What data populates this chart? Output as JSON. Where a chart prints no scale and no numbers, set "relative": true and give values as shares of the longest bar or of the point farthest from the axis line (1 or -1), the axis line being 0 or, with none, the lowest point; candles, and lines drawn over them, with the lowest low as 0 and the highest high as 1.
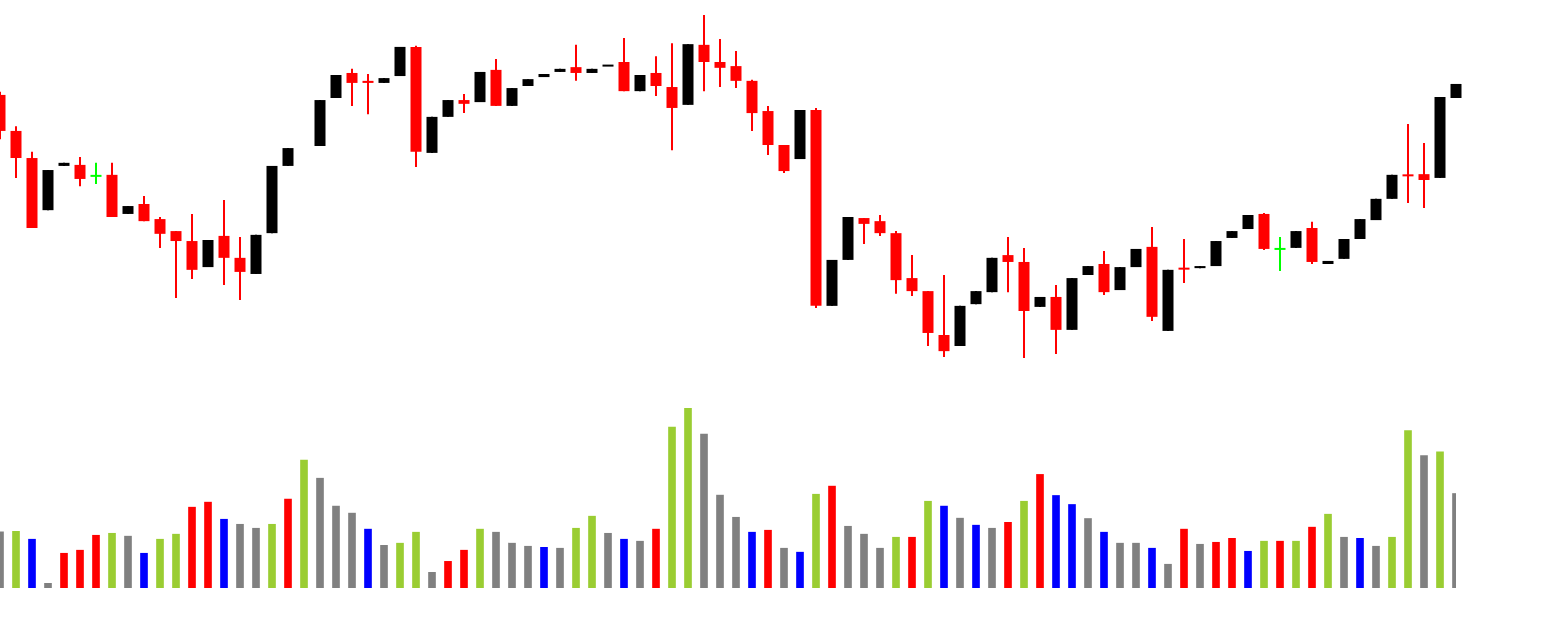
{
  "chart_data": [
    {
      "type": "candlestick",
      "relative": true,
      "categories": [
        null,
        null,
        null,
        null,
        null,
        null,
        null,
        null,
        null,
        null,
        null,
        null,
        null,
        null,
        null,
        null,
        null,
        null,
        null,
        null,
        null,
        null,
        null,
        null,
        null,
        null,
        null,
        null,
        null,
        null,
        null,
        null,
        null,
        null,
        null,
        null,
        null,
        null,
        null,
        null,
        null,
        null,
        null,
        null,
        null,
        null,
        null,
        null,
        null,
        null,
        null,
        null,
        null,
        null,
        null,
        null,
        null,
        null,
        null,
        null,
        null,
        null,
        null,
        null,
        null,
        null,
        null,
        null,
        null,
        null,
        null,
        null,
        null,
        null,
        null,
        null,
        null,
        null,
        null,
        null,
        null,
        null,
        null,
        null,
        null,
        null,
        null,
        null,
        null,
        null,
        null,
        null
      ],
      "ohlc": [
        [
          0.767,
          0.776,
          0.638,
          0.662
        ],
        [
          0.662,
          0.676,
          0.525,
          0.583
        ],
        [
          0.583,
          0.601,
          0.379,
          0.379
        ],
        [
          0.431,
          0.548,
          0.431,
          0.548
        ],
        [
          0.56,
          0.569,
          0.56,
          0.569
        ],
        [
          0.563,
          0.586,
          0.501,
          0.522
        ],
        [
          0.531,
          0.569,
          0.507,
          0.531
        ],
        [
          0.534,
          0.569,
          0.411,
          0.411
        ],
        [
          0.42,
          0.443,
          0.42,
          0.443
        ],
        [
          0.449,
          0.472,
          0.399,
          0.399
        ],
        [
          0.405,
          0.411,
          0.321,
          0.362
        ],
        [
          0.37,
          0.37,
          0.175,
          0.341
        ],
        [
          0.341,
          0.42,
          0.23,
          0.257
        ],
        [
          0.265,
          0.344,
          0.265,
          0.344
        ],
        [
          0.356,
          0.461,
          0.213,
          0.292
        ],
        [
          0.292,
          0.353,
          0.169,
          0.251
        ],
        [
          0.245,
          0.359,
          0.245,
          0.359
        ],
        [
          0.364,
          0.56,
          0.364,
          0.56
        ],
        [
          0.56,
          0.612,
          0.56,
          0.612
        ],
        null,
        [
          0.618,
          0.752,
          0.618,
          0.752
        ],
        [
          0.758,
          0.825,
          0.758,
          0.825
        ],
        [
          0.831,
          0.843,
          0.735,
          0.802
        ],
        [
          0.808,
          0.828,
          0.711,
          0.802
        ],
        [
          0.802,
          0.816,
          0.802,
          0.816
        ],
        [
          0.822,
          0.907,
          0.822,
          0.907
        ],
        [
          0.907,
          0.91,
          0.557,
          0.601
        ],
        [
          0.598,
          0.703,
          0.598,
          0.703
        ],
        [
          0.703,
          0.752,
          0.703,
          0.752
        ],
        [
          0.752,
          0.77,
          0.714,
          0.741
        ],
        [
          0.746,
          0.834,
          0.746,
          0.834
        ],
        [
          0.84,
          0.872,
          0.735,
          0.735
        ],
        [
          0.735,
          0.787,
          0.735,
          0.787
        ],
        [
          0.793,
          0.813,
          0.793,
          0.813
        ],
        [
          0.819,
          0.828,
          0.819,
          0.828
        ],
        [
          0.834,
          0.843,
          0.834,
          0.843
        ],
        [
          0.848,
          0.913,
          0.808,
          0.831
        ],
        [
          0.831,
          0.843,
          0.831,
          0.843
        ],
        [
          0.851,
          0.854,
          0.851,
          0.854
        ],
        [
          0.863,
          0.933,
          0.778,
          0.778
        ],
        [
          0.778,
          0.825,
          0.778,
          0.825
        ],
        [
          0.831,
          0.88,
          0.764,
          0.793
        ],
        [
          0.79,
          0.918,
          0.606,
          0.729
        ],
        [
          0.738,
          0.915,
          0.738,
          0.915
        ],
        [
          0.913,
          1,
          0.778,
          0.863
        ],
        [
          0.863,
          0.93,
          0.79,
          0.846
        ],
        [
          0.851,
          0.895,
          0.787,
          0.808
        ],
        [
          0.808,
          0.811,
          0.662,
          0.714
        ],
        [
          0.72,
          0.735,
          0.592,
          0.621
        ],
        [
          0.621,
          0.621,
          0.539,
          0.545
        ],
        [
          0.58,
          0.723,
          0.58,
          0.723
        ],
        [
          0.723,
          0.729,
          0.146,
          0.152
        ],
        [
          0.152,
          0.286,
          0.152,
          0.286
        ],
        [
          0.286,
          0.411,
          0.286,
          0.411
        ],
        [
          0.408,
          0.408,
          0.332,
          0.391
        ],
        [
          0.399,
          0.417,
          0.356,
          0.364
        ],
        [
          0.364,
          0.37,
          0.187,
          0.227
        ],
        [
          0.233,
          0.3,
          0.181,
          0.195
        ],
        [
          0.195,
          0.195,
          0.035,
          0.073
        ],
        [
          0.067,
          0.242,
          0.003,
          0.02
        ],
        [
          0.035,
          0.152,
          0.035,
          0.152
        ],
        [
          0.157,
          0.195,
          0.157,
          0.195
        ],
        [
          0.192,
          0.292,
          0.192,
          0.292
        ],
        [
          0.3,
          0.353,
          0.192,
          0.28
        ],
        [
          0.28,
          0.321,
          0,
          0.137
        ],
        [
          0.149,
          0.178,
          0.149,
          0.178
        ],
        [
          0.178,
          0.213,
          0.012,
          0.082
        ],
        [
          0.082,
          0.233,
          0.082,
          0.233
        ],
        [
          0.242,
          0.268,
          0.242,
          0.268
        ],
        [
          0.274,
          0.312,
          0.184,
          0.192
        ],
        [
          0.198,
          0.265,
          0.198,
          0.265
        ],
        [
          0.265,
          0.318,
          0.265,
          0.318
        ],
        [
          0.324,
          0.382,
          0.108,
          0.12
        ],
        [
          0.079,
          0.257,
          0.079,
          0.257
        ],
        [
          0.262,
          0.347,
          0.219,
          0.259
        ],
        [
          0.262,
          0.268,
          0.262,
          0.268
        ],
        [
          0.268,
          0.341,
          0.268,
          0.341
        ],
        [
          0.35,
          0.37,
          0.35,
          0.37
        ],
        [
          0.376,
          0.417,
          0.376,
          0.417
        ],
        [
          0.42,
          0.423,
          0.315,
          0.318
        ],
        [
          0.318,
          0.353,
          0.254,
          0.318
        ],
        [
          0.321,
          0.37,
          0.321,
          0.37
        ],
        [
          0.379,
          0.397,
          0.274,
          0.28
        ],
        [
          0.274,
          0.283,
          0.274,
          0.283
        ],
        [
          0.289,
          0.347,
          0.289,
          0.347
        ],
        [
          0.347,
          0.405,
          0.347,
          0.405
        ],
        [
          0.402,
          0.464,
          0.402,
          0.464
        ],
        [
          0.464,
          0.534,
          0.464,
          0.534
        ],
        [
          0.534,
          0.682,
          0.452,
          0.531
        ],
        [
          0.536,
          0.627,
          0.437,
          0.519
        ],
        [
          0.525,
          0.761,
          0.525,
          0.761
        ],
        [
          0.758,
          0.799,
          0.758,
          0.799
        ]
      ],
      "colors": [
        "#ff0000",
        "#ff0000",
        "#ff0000",
        "#000000",
        "#000000",
        "#ff0000",
        "#00ff00",
        "#ff0000",
        "#000000",
        "#ff0000",
        "#ff0000",
        "#ff0000",
        "#ff0000",
        "#000000",
        "#ff0000",
        "#ff0000",
        "#000000",
        "#000000",
        "#000000",
        null,
        "#000000",
        "#000000",
        "#ff0000",
        "#ff0000",
        "#000000",
        "#000000",
        "#ff0000",
        "#000000",
        "#000000",
        "#ff0000",
        "#000000",
        "#ff0000",
        "#000000",
        "#000000",
        "#000000",
        "#000000",
        "#ff0000",
        "#000000",
        "#000000",
        "#ff0000",
        "#000000",
        "#ff0000",
        "#ff0000",
        "#000000",
        "#ff0000",
        "#ff0000",
        "#ff0000",
        "#ff0000",
        "#ff0000",
        "#ff0000",
        "#000000",
        "#ff0000",
        "#000000",
        "#000000",
        "#ff0000",
        "#ff0000",
        "#ff0000",
        "#ff0000",
        "#ff0000",
        "#ff0000",
        "#000000",
        "#000000",
        "#000000",
        "#ff0000",
        "#ff0000",
        "#000000",
        "#ff0000",
        "#000000",
        "#000000",
        "#ff0000",
        "#000000",
        "#000000",
        "#ff0000",
        "#000000",
        "#ff0000",
        "#000000",
        "#000000",
        "#000000",
        "#000000",
        "#ff0000",
        "#00ff00",
        "#000000",
        "#ff0000",
        "#000000",
        "#000000",
        "#000000",
        "#000000",
        "#000000",
        "#ff0000",
        "#ff0000",
        "#000000",
        "#000000"
      ]
    },
    {
      "type": "bar",
      "relative": true,
      "categories": [
        null,
        null,
        null,
        null,
        null,
        null,
        null,
        null,
        null,
        null,
        null,
        null,
        null,
        null,
        null,
        null,
        null,
        null,
        null,
        null,
        null,
        null,
        null,
        null,
        null,
        null,
        null,
        null,
        null,
        null,
        null,
        null,
        null,
        null,
        null,
        null,
        null,
        null,
        null,
        null,
        null,
        null,
        null,
        null,
        null,
        null,
        null,
        null,
        null,
        null,
        null,
        null,
        null,
        null,
        null,
        null,
        null,
        null,
        null,
        null,
        null,
        null,
        null,
        null,
        null,
        null,
        null,
        null,
        null,
        null,
        null,
        null,
        null,
        null,
        null,
        null,
        null,
        null,
        null,
        null,
        null,
        null,
        null,
        null,
        null,
        null,
        null,
        null,
        null,
        null,
        null,
        null
      ],
      "values": [
        0.312,
        0.315,
        0.271,
        0.026,
        0.193,
        0.21,
        0.293,
        0.304,
        0.288,
        0.193,
        0.271,
        0.299,
        0.449,
        0.477,
        0.382,
        0.354,
        0.332,
        0.354,
        0.494,
        0.711,
        0.61,
        0.455,
        0.416,
        0.327,
        0.237,
        0.249,
        0.31,
        0.087,
        0.148,
        0.21,
        0.327,
        0.31,
        0.249,
        0.232,
        0.226,
        0.221,
        0.332,
        0.399,
        0.304,
        0.271,
        0.26,
        0.327,
        0.894,
        1,
        0.855,
        0.516,
        0.393,
        0.31,
        0.321,
        0.221,
        0.199,
        0.521,
        0.566,
        0.343,
        0.299,
        0.221,
        0.282,
        0.282,
        0.482,
        0.455,
        0.388,
        0.349,
        0.332,
        0.365,
        0.482,
        0.631,
        0.514,
        0.464,
        0.386,
        0.31,
        0.249,
        0.249,
        0.221,
        0.132,
        0.327,
        0.243,
        0.254,
        0.276,
        0.204,
        0.26,
        0.26,
        0.26,
        0.338,
        0.41,
        0.282,
        0.276,
        0.232,
        0.282,
        0.874,
        0.735,
        0.757,
        0.525
      ],
      "colors": [
        "#808080",
        "#9acd32",
        "#0000ff",
        "#808080",
        "#ff0000",
        "#ff0000",
        "#ff0000",
        "#9acd32",
        "#808080",
        "#0000ff",
        "#9acd32",
        "#9acd32",
        "#ff0000",
        "#ff0000",
        "#0000ff",
        "#808080",
        "#808080",
        "#9acd32",
        "#ff0000",
        "#9acd32",
        "#808080",
        "#808080",
        "#808080",
        "#0000ff",
        "#808080",
        "#9acd32",
        "#9acd32",
        "#808080",
        "#ff0000",
        "#ff0000",
        "#9acd32",
        "#808080",
        "#808080",
        "#808080",
        "#0000ff",
        "#808080",
        "#9acd32",
        "#9acd32",
        "#808080",
        "#0000ff",
        "#808080",
        "#ff0000",
        "#9acd32",
        "#9acd32",
        "#808080",
        "#808080",
        "#808080",
        "#0000ff",
        "#ff0000",
        "#808080",
        "#0000ff",
        "#9acd32",
        "#ff0000",
        "#808080",
        "#808080",
        "#808080",
        "#9acd32",
        "#ff0000",
        "#9acd32",
        "#0000ff",
        "#808080",
        "#0000ff",
        "#808080",
        "#ff0000",
        "#9acd32",
        "#ff0000",
        "#0000ff",
        "#0000ff",
        "#808080",
        "#0000ff",
        "#808080",
        "#808080",
        "#0000ff",
        "#808080",
        "#ff0000",
        "#808080",
        "#ff0000",
        "#ff0000",
        "#0000ff",
        "#9acd32",
        "#ff0000",
        "#9acd32",
        "#ff0000",
        "#9acd32",
        "#808080",
        "#0000ff",
        "#808080",
        "#9acd32",
        "#9acd32",
        "#808080",
        "#9acd32",
        "#808080"
      ]
    }
  ]
}
